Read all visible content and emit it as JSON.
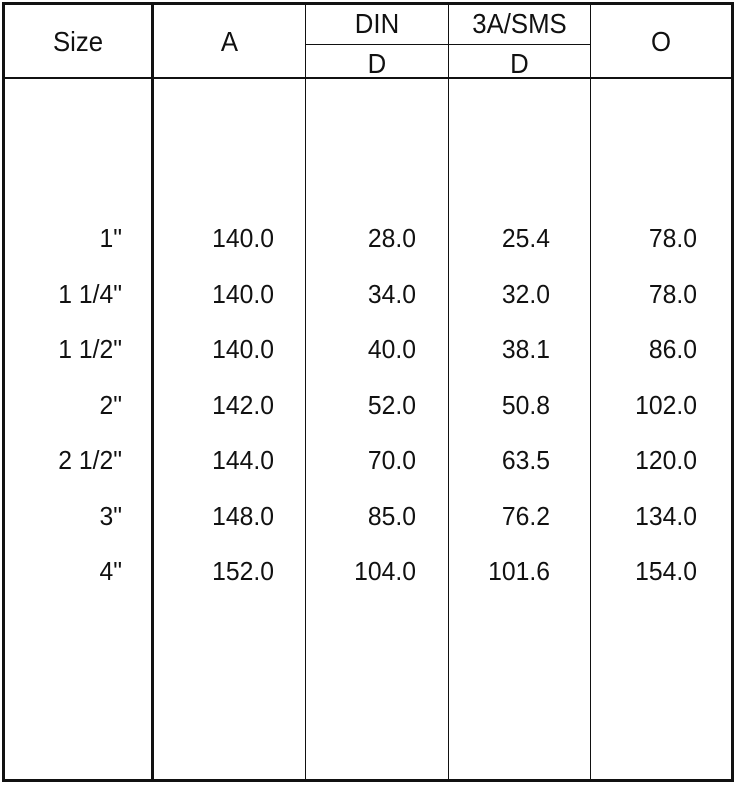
{
  "table": {
    "header": {
      "size": "Size",
      "a": "A",
      "din": "DIN",
      "din_sub": "D",
      "sms": "3A/SMS",
      "sms_sub": "D",
      "o": "O"
    },
    "rows": [
      [
        "1\"",
        "140.0",
        "28.0",
        "25.4",
        "78.0"
      ],
      [
        "1 1/4\"",
        "140.0",
        "34.0",
        "32.0",
        "78.0"
      ],
      [
        "1 1/2\"",
        "140.0",
        "40.0",
        "38.1",
        "86.0"
      ],
      [
        "2\"",
        "142.0",
        "52.0",
        "50.8",
        "102.0"
      ],
      [
        "2 1/2\"",
        "144.0",
        "70.0",
        "63.5",
        "120.0"
      ],
      [
        "3\"",
        "148.0",
        "85.0",
        "76.2",
        "134.0"
      ],
      [
        "4\"",
        "152.0",
        "104.0",
        "101.6",
        "154.0"
      ]
    ]
  }
}
